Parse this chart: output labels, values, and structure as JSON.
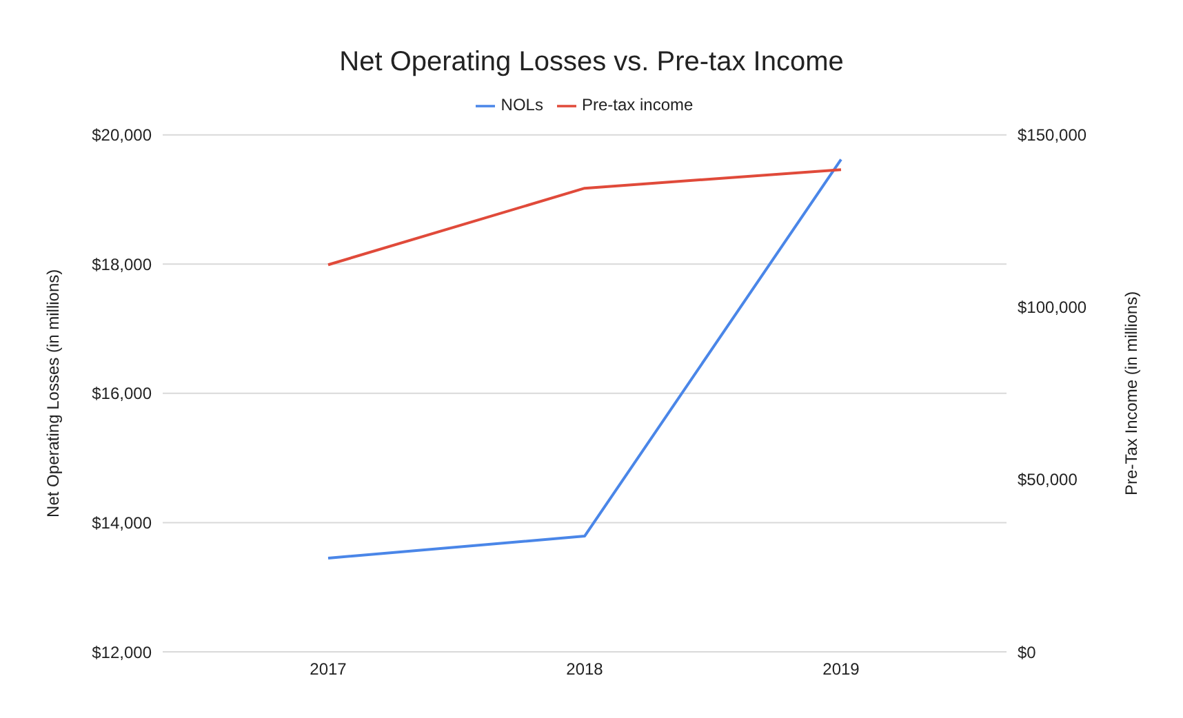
{
  "chart_data": {
    "type": "line",
    "title": "Net Operating Losses vs. Pre-tax Income",
    "ylabel": "Net Operating Losses (in millions)",
    "y2label": "Pre-Tax Income (in millions)",
    "categories": [
      "2017",
      "2018",
      "2019"
    ],
    "series": [
      {
        "name": "NOLs",
        "color": "#4a86e8",
        "values": [
          13450,
          13790,
          19620
        ]
      },
      {
        "name": "Pre-tax income",
        "color": "#e04a3a",
        "values": [
          112300,
          134500,
          139900
        ],
        "axis": "y2"
      }
    ],
    "ylim": [
      12000,
      20000
    ],
    "yticks": [
      {
        "value": 12000,
        "label": "$12,000"
      },
      {
        "value": 14000,
        "label": "$14,000"
      },
      {
        "value": 16000,
        "label": "$16,000"
      },
      {
        "value": 18000,
        "label": "$18,000"
      },
      {
        "value": 20000,
        "label": "$20,000"
      }
    ],
    "y2lim": [
      0,
      150000
    ],
    "y2ticks": [
      {
        "value": 0,
        "label": "$0"
      },
      {
        "value": 50000,
        "label": "$50,000"
      },
      {
        "value": 100000,
        "label": "$100,000"
      },
      {
        "value": 150000,
        "label": "$150,000"
      }
    ],
    "grid": "y",
    "legend": "top",
    "marker": "none",
    "line_style": "solid"
  }
}
